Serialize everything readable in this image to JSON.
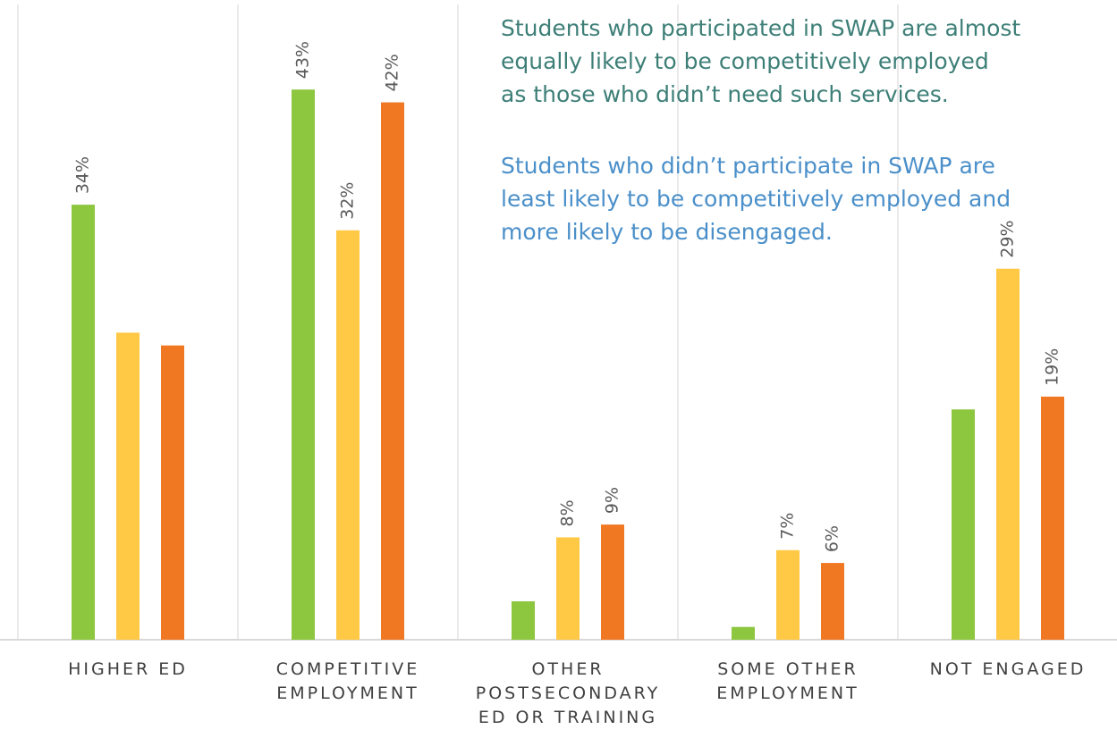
{
  "chart_data": {
    "type": "bar",
    "categories": [
      "HIGHER ED",
      "COMPETITIVE EMPLOYMENT",
      "OTHER POSTSECONDARY ED OR TRAINING",
      "SOME OTHER EMPLOYMENT",
      "NOT ENGAGED"
    ],
    "series": [
      {
        "color": "#8dc63f",
        "values": [
          34,
          43,
          3,
          1,
          18
        ],
        "value_labels": [
          "34%",
          "43%",
          null,
          null,
          null
        ]
      },
      {
        "color": "#ffc845",
        "values": [
          24,
          32,
          8,
          7,
          29
        ],
        "value_labels": [
          null,
          "32%",
          "8%",
          "7%",
          "29%"
        ]
      },
      {
        "color": "#f07822",
        "values": [
          23,
          42,
          9,
          6,
          19
        ],
        "value_labels": [
          null,
          "42%",
          "9%",
          "6%",
          "19%"
        ]
      }
    ],
    "ylim": [
      0,
      50
    ],
    "annotations": [
      {
        "color": "#3d7f77",
        "lines": [
          "Students who participated in SWAP are almost",
          "equally likely to be competitively employed",
          "as those who didn’t need such services."
        ]
      },
      {
        "color": "#4a8fc9",
        "lines": [
          "Students who didn’t participate in SWAP are",
          "least likely to be competitively employed and",
          "more likely to be disengaged."
        ]
      }
    ]
  }
}
